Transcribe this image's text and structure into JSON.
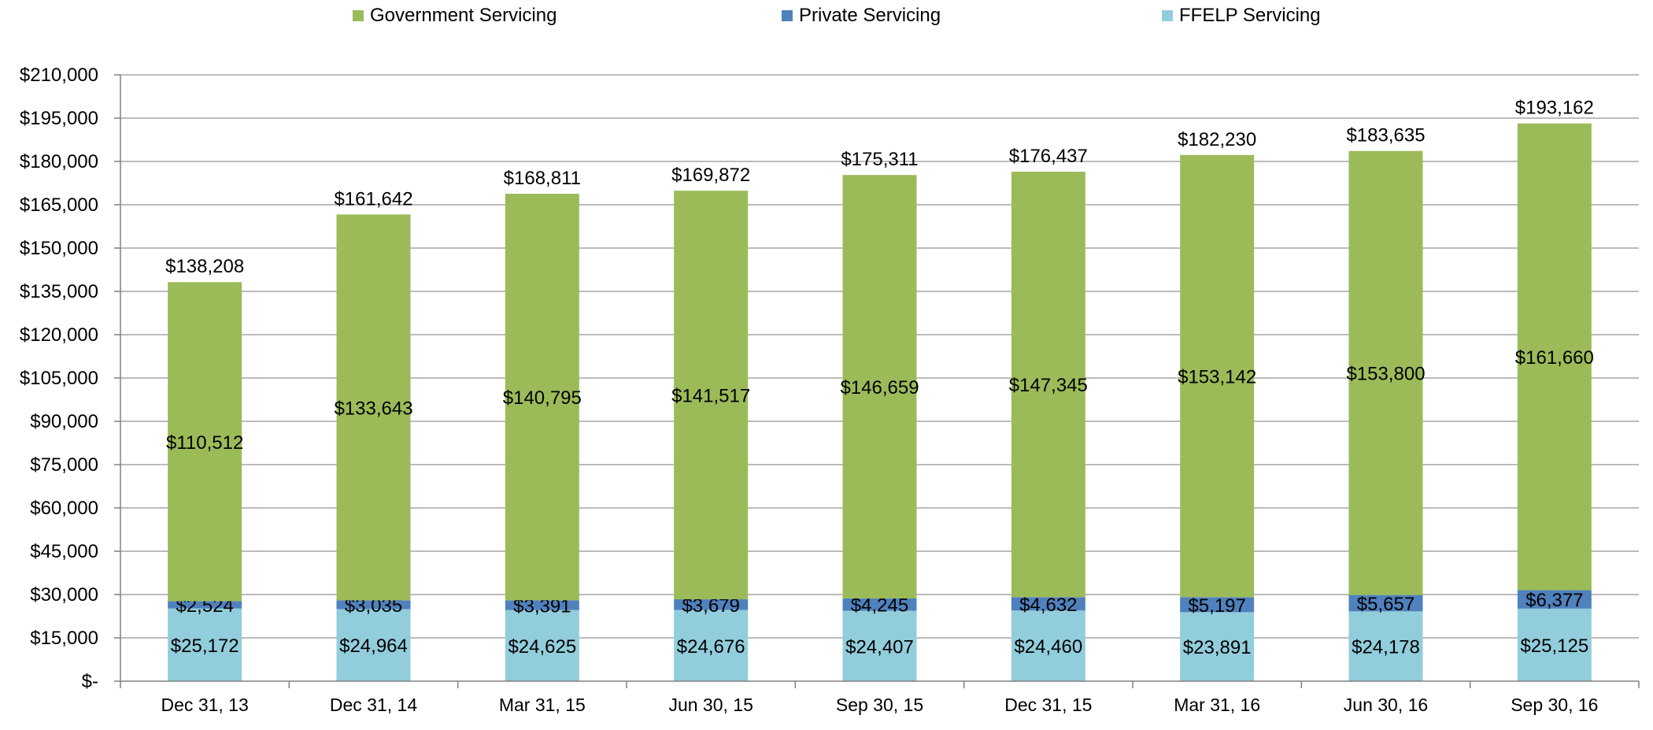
{
  "chart_data": {
    "type": "bar",
    "stacked": true,
    "categories": [
      "Dec 31, 13",
      "Dec 31, 14",
      "Mar 31, 15",
      "Jun 30, 15",
      "Sep 30, 15",
      "Dec 31, 15",
      "Mar 31, 16",
      "Jun 30, 16",
      "Sep 30, 16"
    ],
    "series": [
      {
        "name": "FFELP Servicing",
        "color": "#92CDDC",
        "values": [
          25172,
          24964,
          24625,
          24676,
          24407,
          24460,
          23891,
          24178,
          25125
        ],
        "labels": [
          "$25,172",
          "$24,964",
          "$24,625",
          "$24,676",
          "$24,407",
          "$24,460",
          "$23,891",
          "$24,178",
          "$25,125"
        ]
      },
      {
        "name": "Private Servicing",
        "color": "#4F81BD",
        "values": [
          2524,
          3035,
          3391,
          3679,
          4245,
          4632,
          5197,
          5657,
          6377
        ],
        "labels": [
          "$2,524",
          "$3,035",
          "$3,391",
          "$3,679",
          "$4,245",
          "$4,632",
          "$5,197",
          "$5,657",
          "$6,377"
        ]
      },
      {
        "name": "Government Servicing",
        "color": "#9BBB59",
        "values": [
          110512,
          133643,
          140795,
          141517,
          146659,
          147345,
          153142,
          153800,
          161660
        ],
        "labels": [
          "$110,512",
          "$133,643",
          "$140,795",
          "$141,517",
          "$146,659",
          "$147,345",
          "$153,142",
          "$153,800",
          "$161,660"
        ]
      }
    ],
    "totals": [
      138208,
      161642,
      168811,
      169872,
      175311,
      176437,
      182230,
      183635,
      193162
    ],
    "total_labels": [
      "$138,208",
      "$161,642",
      "$168,811",
      "$169,872",
      "$175,311",
      "$176,437",
      "$182,230",
      "$183,635",
      "$193,162"
    ],
    "ylim": [
      0,
      210000
    ],
    "yticks": [
      0,
      15000,
      30000,
      45000,
      60000,
      75000,
      90000,
      105000,
      120000,
      135000,
      150000,
      165000,
      180000,
      195000,
      210000
    ],
    "ytick_labels": [
      "$-",
      "$15,000",
      "$30,000",
      "$45,000",
      "$60,000",
      "$75,000",
      "$90,000",
      "$105,000",
      "$120,000",
      "$135,000",
      "$150,000",
      "$165,000",
      "$180,000",
      "$195,000",
      "$210,000"
    ],
    "grid": true,
    "legend": {
      "position": "top",
      "order": [
        "Government Servicing",
        "Private Servicing",
        "FFELP Servicing"
      ]
    },
    "title": "",
    "xlabel": "",
    "ylabel": ""
  }
}
